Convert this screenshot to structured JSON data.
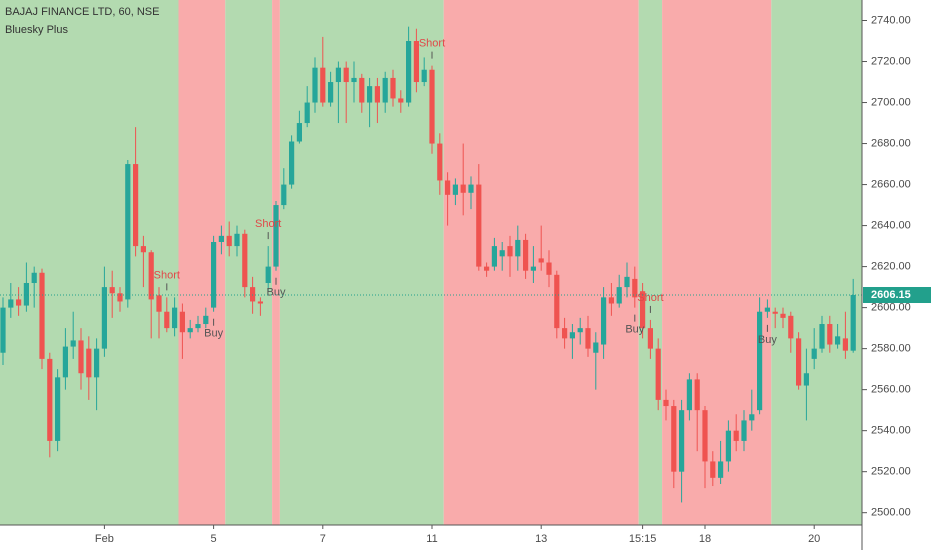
{
  "chart_data": {
    "type": "candlestick",
    "title": "BAJAJ FINANCE LTD, 60, NSE",
    "subtitle": "Bluesky Plus",
    "open": [
      2578,
      2600,
      2604,
      2601,
      2612,
      2617,
      2575,
      2535,
      2566,
      2581,
      2584,
      2580,
      2566,
      2580,
      2610,
      2607,
      2604,
      2670,
      2630,
      2627,
      2606,
      2598,
      2590,
      2598,
      2588,
      2590,
      2592,
      2600,
      2632,
      2635,
      2630,
      2636,
      2610,
      2603,
      2612,
      2620,
      2650,
      2660,
      2681,
      2690,
      2700,
      2717,
      2700,
      2710,
      2717,
      2710,
      2712,
      2700,
      2708,
      2700,
      2712,
      2702,
      2700,
      2730,
      2710,
      2716,
      2680,
      2662,
      2655,
      2660,
      2656,
      2660,
      2620,
      2620,
      2625,
      2630,
      2625,
      2633,
      2618,
      2624,
      2622,
      2616,
      2590,
      2585,
      2588,
      2590,
      2578,
      2582,
      2605,
      2602,
      2610,
      2614,
      2608,
      2590,
      2580,
      2555,
      2552,
      2520,
      2550,
      2565,
      2550,
      2525,
      2517,
      2525,
      2540,
      2535,
      2545,
      2550,
      2598,
      2598,
      2597,
      2596,
      2585,
      2562,
      2575,
      2580,
      2592,
      2582,
      2585,
      2579
    ],
    "high": [
      2605,
      2612,
      2610,
      2622,
      2620,
      2619,
      2578,
      2570,
      2590,
      2598,
      2590,
      2586,
      2585,
      2620,
      2618,
      2610,
      2672,
      2688,
      2635,
      2628,
      2610,
      2605,
      2605,
      2602,
      2594,
      2596,
      2600,
      2635,
      2640,
      2642,
      2640,
      2638,
      2615,
      2605,
      2630,
      2652,
      2668,
      2684,
      2696,
      2708,
      2722,
      2732,
      2715,
      2720,
      2720,
      2720,
      2714,
      2712,
      2712,
      2715,
      2716,
      2706,
      2737,
      2736,
      2722,
      2718,
      2685,
      2666,
      2663,
      2680,
      2664,
      2670,
      2622,
      2634,
      2632,
      2635,
      2640,
      2636,
      2630,
      2640,
      2628,
      2618,
      2595,
      2592,
      2595,
      2596,
      2588,
      2610,
      2612,
      2616,
      2622,
      2620,
      2612,
      2594,
      2585,
      2560,
      2555,
      2555,
      2568,
      2568,
      2552,
      2530,
      2535,
      2545,
      2548,
      2550,
      2560,
      2605,
      2604,
      2600,
      2600,
      2598,
      2588,
      2580,
      2590,
      2596,
      2596,
      2592,
      2598,
      2614
    ],
    "low": [
      2572,
      2595,
      2596,
      2598,
      2600,
      2570,
      2527,
      2530,
      2560,
      2575,
      2560,
      2555,
      2550,
      2576,
      2595,
      2598,
      2600,
      2625,
      2610,
      2585,
      2585,
      2588,
      2586,
      2575,
      2585,
      2588,
      2590,
      2598,
      2626,
      2625,
      2625,
      2605,
      2597,
      2596,
      2608,
      2618,
      2648,
      2658,
      2680,
      2688,
      2695,
      2698,
      2698,
      2690,
      2690,
      2700,
      2695,
      2688,
      2690,
      2695,
      2698,
      2695,
      2698,
      2705,
      2708,
      2675,
      2655,
      2640,
      2650,
      2645,
      2648,
      2618,
      2615,
      2618,
      2618,
      2615,
      2618,
      2614,
      2612,
      2618,
      2610,
      2585,
      2580,
      2575,
      2582,
      2576,
      2560,
      2575,
      2596,
      2600,
      2605,
      2600,
      2585,
      2575,
      2550,
      2545,
      2512,
      2505,
      2545,
      2530,
      2512,
      2513,
      2514,
      2520,
      2530,
      2530,
      2540,
      2548,
      2595,
      2590,
      2590,
      2578,
      2560,
      2545,
      2570,
      2578,
      2578,
      2580,
      2575,
      2578
    ],
    "close": [
      2600,
      2604,
      2601,
      2612,
      2617,
      2575,
      2535,
      2566,
      2581,
      2584,
      2568,
      2566,
      2580,
      2610,
      2607,
      2603,
      2670,
      2630,
      2627,
      2604,
      2598,
      2590,
      2600,
      2588,
      2590,
      2592,
      2596,
      2632,
      2635,
      2630,
      2636,
      2610,
      2603,
      2602,
      2620,
      2650,
      2660,
      2681,
      2690,
      2700,
      2717,
      2700,
      2710,
      2717,
      2710,
      2712,
      2700,
      2708,
      2700,
      2712,
      2702,
      2700,
      2730,
      2710,
      2716,
      2680,
      2662,
      2655,
      2660,
      2656,
      2660,
      2620,
      2618,
      2630,
      2628,
      2625,
      2633,
      2618,
      2620,
      2622,
      2616,
      2590,
      2585,
      2588,
      2590,
      2580,
      2583,
      2605,
      2602,
      2610,
      2615,
      2605,
      2590,
      2580,
      2555,
      2552,
      2520,
      2550,
      2565,
      2550,
      2525,
      2517,
      2525,
      2540,
      2535,
      2545,
      2548,
      2598,
      2600,
      2597,
      2595,
      2585,
      2562,
      2568,
      2580,
      2592,
      2582,
      2586,
      2579,
      2606.15
    ],
    "up_color": "#26a69a",
    "down_color": "#ef5350",
    "zones": [
      {
        "from": 0,
        "to": 22,
        "color": "#b3dab0"
      },
      {
        "from": 23,
        "to": 28,
        "color": "#f9abab"
      },
      {
        "from": 29,
        "to": 34,
        "color": "#b3dab0"
      },
      {
        "from": 35,
        "to": 35,
        "color": "#f9abab"
      },
      {
        "from": 36,
        "to": 56,
        "color": "#b3dab0"
      },
      {
        "from": 57,
        "to": 81,
        "color": "#f9abab"
      },
      {
        "from": 82,
        "to": 84,
        "color": "#b3dab0"
      },
      {
        "from": 85,
        "to": 98,
        "color": "#f9abab"
      },
      {
        "from": 99,
        "to": 109,
        "color": "#b3dab0"
      }
    ],
    "signals": [
      {
        "label": "Short",
        "index": 21
      },
      {
        "label": "Buy",
        "index": 27
      },
      {
        "label": "Short",
        "index": 34
      },
      {
        "label": "Buy",
        "index": 35
      },
      {
        "label": "Short",
        "index": 55
      },
      {
        "label": "Buy",
        "index": 81
      },
      {
        "label": "Short",
        "index": 83
      },
      {
        "label": "Buy",
        "index": 98
      }
    ],
    "last_price": 2606.15,
    "last_price_color": "#22a08c",
    "xticks": [
      {
        "value": 13,
        "label": "Feb"
      },
      {
        "value": 27,
        "label": "5"
      },
      {
        "value": 41,
        "label": "7"
      },
      {
        "value": 55,
        "label": "11"
      },
      {
        "value": 69,
        "label": "13"
      },
      {
        "value": 82,
        "label": "15:15"
      },
      {
        "value": 90,
        "label": "18"
      },
      {
        "value": 104,
        "label": "20"
      }
    ],
    "ylim": [
      2494,
      2750
    ],
    "yticks": [
      {
        "value": 2500,
        "label": "2500.00"
      },
      {
        "value": 2520,
        "label": "2520.00"
      },
      {
        "value": 2540,
        "label": "2540.00"
      },
      {
        "value": 2560,
        "label": "2560.00"
      },
      {
        "value": 2580,
        "label": "2580.00"
      },
      {
        "value": 2600,
        "label": "2600.00"
      },
      {
        "value": 2620,
        "label": "2620.00"
      },
      {
        "value": 2640,
        "label": "2640.00"
      },
      {
        "value": 2660,
        "label": "2660.00"
      },
      {
        "value": 2680,
        "label": "2680.00"
      },
      {
        "value": 2700,
        "label": "2700.00"
      },
      {
        "value": 2720,
        "label": "2720.00"
      },
      {
        "value": 2740,
        "label": "2740.00"
      }
    ]
  }
}
